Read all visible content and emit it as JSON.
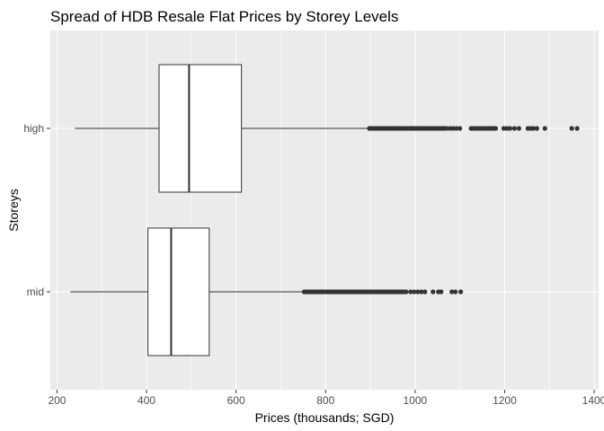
{
  "chart_data": {
    "type": "boxplot",
    "orientation": "horizontal",
    "title": "Spread of HDB Resale Flat Prices by Storey Levels",
    "xlabel": "Prices (thousands; SGD)",
    "ylabel": "Storeys",
    "xlim": [
      185,
      1410
    ],
    "x_ticks": [
      200,
      400,
      600,
      800,
      1000,
      1200,
      1400
    ],
    "grid": true,
    "legend": "none",
    "colors": {
      "panel": "#ebebeb",
      "grid": "#ffffff",
      "box_fill": "#ffffff",
      "stroke": "#333333",
      "outlier": "#333333"
    },
    "categories": [
      "high",
      "mid"
    ],
    "boxes": [
      {
        "category": "high",
        "whisker_low": 240,
        "q1": 428,
        "median": 495,
        "q3": 612,
        "whisker_high": 895,
        "outliers": [
          898,
          902,
          906,
          910,
          914,
          918,
          922,
          926,
          930,
          934,
          938,
          942,
          946,
          950,
          954,
          958,
          962,
          966,
          970,
          974,
          978,
          982,
          986,
          990,
          994,
          998,
          1002,
          1006,
          1010,
          1014,
          1018,
          1022,
          1026,
          1030,
          1034,
          1038,
          1042,
          1046,
          1050,
          1054,
          1058,
          1062,
          1066,
          1070,
          1078,
          1085,
          1092,
          1100,
          1125,
          1130,
          1135,
          1140,
          1145,
          1150,
          1155,
          1160,
          1165,
          1170,
          1175,
          1180,
          1198,
          1205,
          1212,
          1222,
          1232,
          1252,
          1258,
          1264,
          1272,
          1290,
          1350,
          1362
        ]
      },
      {
        "category": "mid",
        "whisker_low": 230,
        "q1": 403,
        "median": 455,
        "q3": 540,
        "whisker_high": 750,
        "outliers": [
          752,
          756,
          760,
          764,
          768,
          772,
          776,
          780,
          784,
          788,
          792,
          796,
          800,
          804,
          808,
          812,
          816,
          820,
          824,
          828,
          832,
          836,
          840,
          844,
          848,
          852,
          856,
          860,
          864,
          868,
          872,
          876,
          880,
          884,
          888,
          892,
          896,
          900,
          904,
          908,
          912,
          916,
          920,
          924,
          928,
          932,
          936,
          940,
          944,
          948,
          952,
          956,
          960,
          964,
          968,
          972,
          976,
          980,
          990,
          998,
          1006,
          1014,
          1022,
          1040,
          1052,
          1058,
          1082,
          1090,
          1102
        ]
      }
    ]
  }
}
